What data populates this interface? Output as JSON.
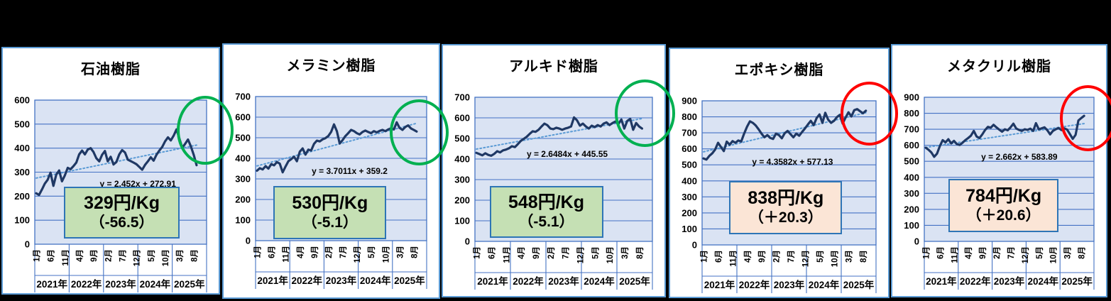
{
  "page": {
    "background": "#000000"
  },
  "colors": {
    "panel_border": "#5B9BD5",
    "plot_bg": "#DAE3F3",
    "gridline": "#4472C4",
    "series_line": "#1F3864",
    "trend_line": "#5B9BD5",
    "box_border": "#2E75B6",
    "box_fill_green": "#C5E0B4",
    "box_fill_pink": "#FBE5D6",
    "circle_green": "#00B050",
    "circle_red": "#FF0000"
  },
  "chart_data": [
    {
      "type": "line",
      "title": "石油樹脂",
      "ylim": [
        0,
        600
      ],
      "ytick_step": 100,
      "ytick_labels": [
        "0",
        "100",
        "200",
        "300",
        "400",
        "500",
        "600"
      ],
      "month_tick_labels": [
        "1月",
        "6月",
        "11月",
        "4月",
        "9月",
        "2月",
        "7月",
        "12月",
        "5月",
        "10月",
        "3月",
        "8月"
      ],
      "year_labels": [
        "2021年",
        "2022年",
        "2023年",
        "2024年",
        "2025年"
      ],
      "x_axis_months": 60,
      "grid": true,
      "values": [
        212,
        205,
        228,
        252,
        268,
        298,
        243,
        290,
        307,
        262,
        286,
        318,
        312,
        325,
        340,
        374,
        390,
        374,
        394,
        400,
        384,
        358,
        345,
        372,
        388,
        345,
        364,
        332,
        342,
        374,
        392,
        382,
        352,
        346,
        340,
        333,
        322,
        310,
        330,
        345,
        362,
        348,
        372,
        390,
        405,
        428,
        445,
        432,
        452,
        478,
        440,
        402,
        418,
        436,
        408,
        372,
        329
      ],
      "trend": {
        "equation": "y = 2.452x + 272.91",
        "slope": 2.452,
        "intercept": 272.91
      },
      "label_box": {
        "line1": "329円/Kg",
        "line2": "（-56.5）",
        "fill": "green"
      },
      "circle_color": "green"
    },
    {
      "type": "line",
      "title": "メラミン樹脂",
      "ylim": [
        0,
        700
      ],
      "ytick_step": 100,
      "ytick_labels": [
        "0",
        "100",
        "200",
        "300",
        "400",
        "500",
        "600",
        "700"
      ],
      "month_tick_labels": [
        "1月",
        "6月",
        "11月",
        "4月",
        "9月",
        "2月",
        "7月",
        "12月",
        "5月",
        "10月",
        "3月",
        "8月"
      ],
      "year_labels": [
        "2021年",
        "2022年",
        "2023年",
        "2024年",
        "2025年"
      ],
      "x_axis_months": 60,
      "grid": true,
      "values": [
        340,
        352,
        346,
        362,
        350,
        372,
        366,
        382,
        374,
        332,
        360,
        386,
        396,
        408,
        386,
        432,
        448,
        418,
        442,
        438,
        470,
        486,
        482,
        492,
        498,
        508,
        528,
        565,
        532,
        472,
        488,
        508,
        522,
        538,
        532,
        522,
        516,
        528,
        535,
        528,
        522,
        532,
        526,
        533,
        538,
        532,
        540,
        546,
        540,
        575,
        548,
        538,
        552,
        560,
        545,
        538,
        530
      ],
      "trend": {
        "equation": "y = 3.7011x + 359.2",
        "slope": 3.7011,
        "intercept": 359.2
      },
      "label_box": {
        "line1": "530円/Kg",
        "line2": "（-5.1）",
        "fill": "green"
      },
      "circle_color": "green"
    },
    {
      "type": "line",
      "title": "アルキド樹脂",
      "ylim": [
        0,
        700
      ],
      "ytick_step": 100,
      "ytick_labels": [
        "0",
        "100",
        "200",
        "300",
        "400",
        "500",
        "600",
        "700"
      ],
      "month_tick_labels": [
        "1月",
        "6月",
        "11月",
        "4月",
        "9月",
        "2月",
        "7月",
        "12月",
        "5月",
        "10月",
        "3月",
        "8月"
      ],
      "year_labels": [
        "2021年",
        "2022年",
        "2023年",
        "2024年",
        "2025年"
      ],
      "x_axis_months": 60,
      "grid": true,
      "values": [
        430,
        424,
        418,
        428,
        420,
        416,
        425,
        438,
        432,
        442,
        446,
        452,
        462,
        458,
        472,
        488,
        498,
        508,
        522,
        535,
        532,
        542,
        558,
        572,
        564,
        548,
        545,
        552,
        548,
        542,
        548,
        552,
        558,
        602,
        588,
        562,
        572,
        558,
        548,
        562,
        555,
        565,
        558,
        572,
        578,
        565,
        575,
        582,
        570,
        592,
        548,
        585,
        595,
        542,
        575,
        558,
        548
      ],
      "trend": {
        "equation": "y = 2.6484x + 445.55",
        "slope": 2.6484,
        "intercept": 445.55
      },
      "label_box": {
        "line1": "548円/Kg",
        "line2": "（-5.1）",
        "fill": "green"
      },
      "circle_color": "green"
    },
    {
      "type": "line",
      "title": "エポキシ樹脂",
      "ylim": [
        0,
        900
      ],
      "ytick_step": 100,
      "ytick_labels": [
        "0",
        "100",
        "200",
        "300",
        "400",
        "500",
        "600",
        "700",
        "800",
        "900"
      ],
      "month_tick_labels": [
        "1月",
        "6月",
        "11月",
        "4月",
        "9月",
        "2月",
        "7月",
        "12月",
        "5月",
        "10月",
        "3月",
        "8月"
      ],
      "year_labels": [
        "2021年",
        "2022年",
        "2023年",
        "2024年",
        "2025年"
      ],
      "x_axis_months": 60,
      "grid": true,
      "values": [
        540,
        533,
        556,
        572,
        596,
        638,
        612,
        586,
        645,
        626,
        648,
        638,
        652,
        646,
        695,
        738,
        772,
        762,
        746,
        722,
        695,
        672,
        686,
        668,
        662,
        695,
        686,
        666,
        698,
        712,
        692,
        672,
        695,
        682,
        706,
        728,
        752,
        775,
        748,
        792,
        815,
        762,
        825,
        782,
        762,
        775,
        798,
        812,
        758,
        795,
        828,
        802,
        842,
        848,
        835,
        822,
        838
      ],
      "trend": {
        "equation": "y = 4.3582x + 577.13",
        "slope": 4.3582,
        "intercept": 577.13
      },
      "label_box": {
        "line1": "838円/Kg",
        "line2": "（＋20.3）",
        "fill": "pink"
      },
      "circle_color": "red"
    },
    {
      "type": "line",
      "title": "メタクリル樹脂",
      "ylim": [
        0,
        900
      ],
      "ytick_step": 100,
      "ytick_labels": [
        "0",
        "100",
        "200",
        "300",
        "400",
        "500",
        "600",
        "700",
        "800",
        "900"
      ],
      "month_tick_labels": [
        "1月",
        "6月",
        "11月",
        "4月",
        "9月",
        "2月",
        "7月",
        "12月",
        "5月",
        "10月",
        "3月",
        "8月"
      ],
      "year_labels": [
        "2021年",
        "2022年",
        "2023年",
        "2024年",
        "2025年"
      ],
      "x_axis_months": 60,
      "grid": true,
      "values": [
        585,
        572,
        555,
        528,
        548,
        595,
        632,
        618,
        638,
        612,
        628,
        608,
        602,
        616,
        632,
        645,
        660,
        690,
        655,
        645,
        668,
        695,
        715,
        710,
        728,
        712,
        698,
        685,
        700,
        694,
        712,
        735,
        705,
        696,
        690,
        700,
        696,
        704,
        690,
        738,
        700,
        706,
        712,
        694,
        668,
        690,
        700,
        708,
        695,
        706,
        698,
        670,
        640,
        665,
        755,
        770,
        784
      ],
      "trend": {
        "equation": "y = 2.662x + 583.89",
        "slope": 2.662,
        "intercept": 583.89
      },
      "label_box": {
        "line1": "784円/Kg",
        "line2": "（＋20.6）",
        "fill": "pink"
      },
      "circle_color": "red"
    }
  ]
}
